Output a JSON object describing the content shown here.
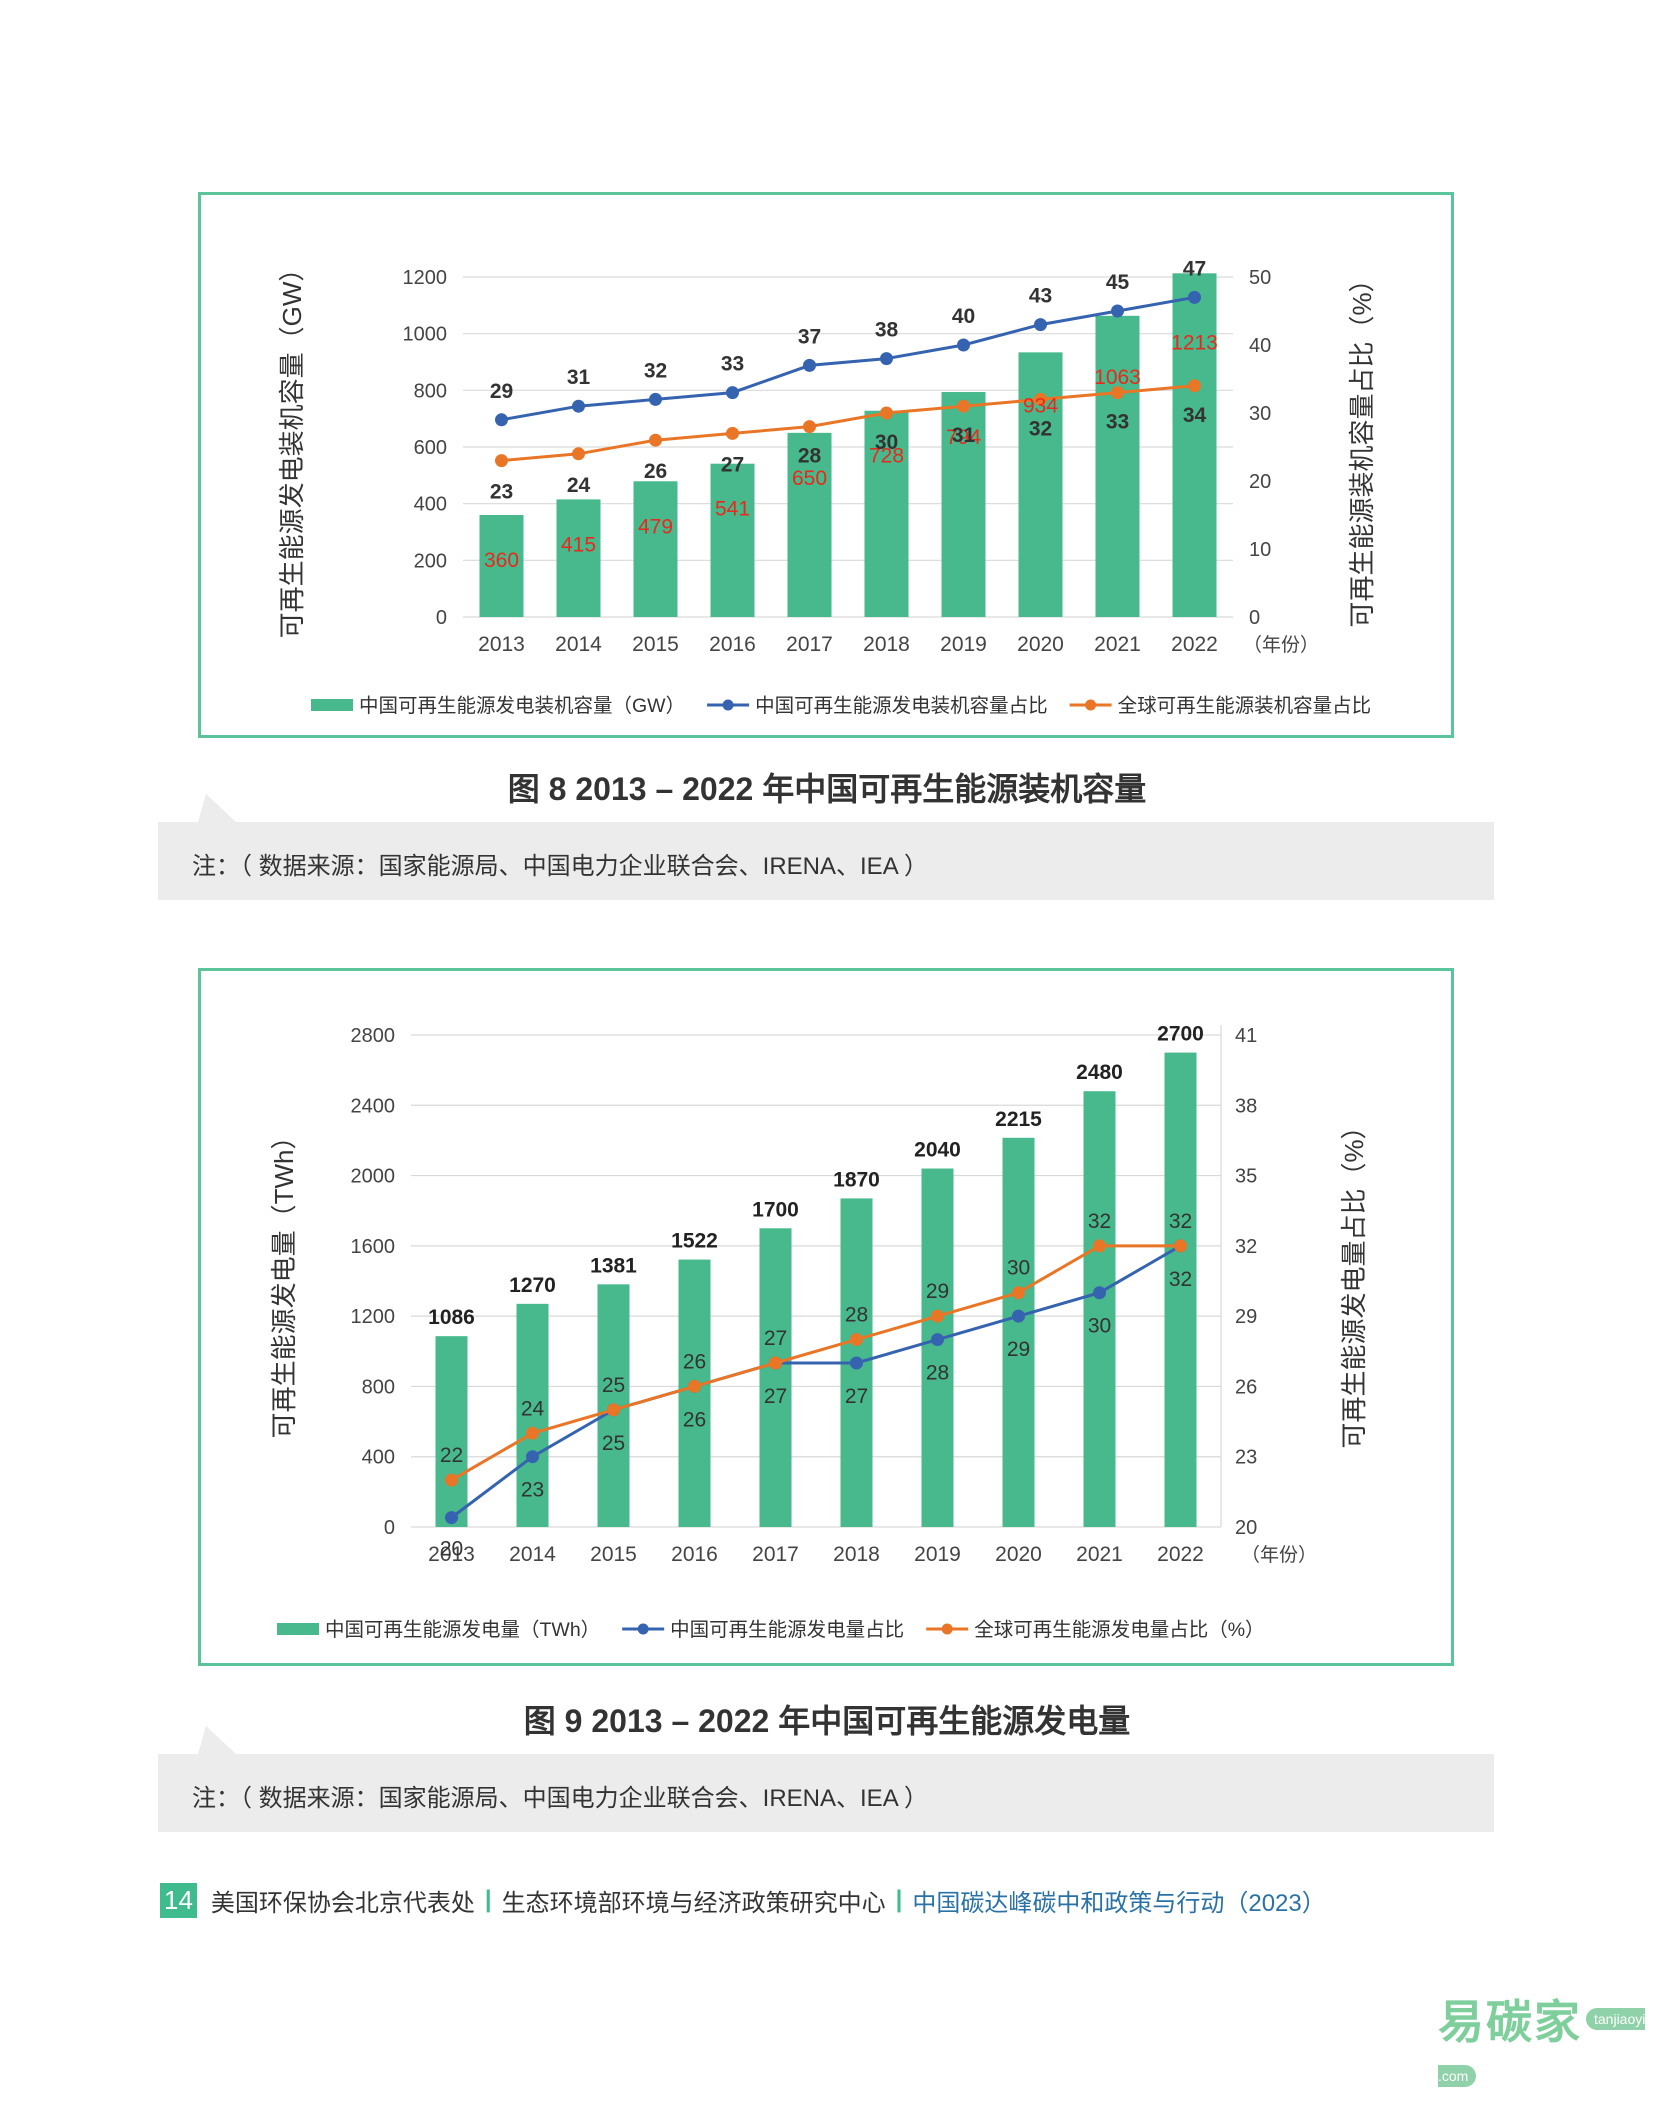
{
  "chart_data": [
    {
      "type": "bar",
      "categories": [
        "2013",
        "2014",
        "2015",
        "2016",
        "2017",
        "2018",
        "2019",
        "2020",
        "2021",
        "2022"
      ],
      "x_unit_label": "（年份）",
      "ylabel": "可再生能源发电装机容量（GW）",
      "y2label": "可再生能源装机容量占比（%）",
      "ylim": [
        0,
        1200
      ],
      "yticks": [
        0,
        200,
        400,
        600,
        800,
        1000,
        1200
      ],
      "y2lim": [
        0,
        50
      ],
      "y2ticks": [
        0,
        10,
        20,
        30,
        40,
        50
      ],
      "grid": true,
      "legend_position": "bottom",
      "series": [
        {
          "name": "中国可再生能源发电装机容量（GW）",
          "kind": "bar",
          "axis": "left",
          "color": "#47b98c",
          "label_color": "#e8291c",
          "values": [
            360,
            415,
            479,
            541,
            650,
            728,
            794,
            934,
            1063,
            1213
          ]
        },
        {
          "name": "中国可再生能源发电装机容量占比",
          "kind": "line",
          "axis": "right",
          "color": "#3563b0",
          "values": [
            29,
            31,
            32,
            33,
            37,
            38,
            40,
            43,
            45,
            47
          ]
        },
        {
          "name": "全球可再生能源装机容量占比",
          "kind": "line",
          "axis": "right",
          "color": "#e97626",
          "values": [
            23,
            24,
            26,
            27,
            28,
            30,
            31,
            32,
            33,
            34
          ]
        }
      ]
    },
    {
      "type": "bar",
      "categories": [
        "2013",
        "2014",
        "2015",
        "2016",
        "2017",
        "2018",
        "2019",
        "2020",
        "2021",
        "2022"
      ],
      "x_unit_label": "（年份）",
      "ylabel": "可再生能源发电量（TWh）",
      "y2label": "可再生能源发电量占比（%）",
      "ylim": [
        0,
        2800
      ],
      "yticks": [
        0,
        400,
        800,
        1200,
        1600,
        2000,
        2400,
        2800
      ],
      "y2lim": [
        20,
        41
      ],
      "y2ticks": [
        20,
        23,
        26,
        29,
        32,
        35,
        38,
        41
      ],
      "grid": true,
      "legend_position": "bottom",
      "series": [
        {
          "name": "中国可再生能源发电量（TWh）",
          "kind": "bar",
          "axis": "left",
          "color": "#47b98c",
          "label_color": "#222222",
          "values": [
            1086,
            1270,
            1381,
            1522,
            1700,
            1870,
            2040,
            2215,
            2480,
            2700
          ]
        },
        {
          "name": "中国可再生能源发电量占比",
          "kind": "line",
          "axis": "right",
          "color": "#3563b0",
          "values": [
            20.4,
            23,
            25,
            26,
            27,
            27,
            28,
            29,
            30,
            32
          ]
        },
        {
          "name": "全球可再生能源发电量占比（%）",
          "kind": "line",
          "axis": "right",
          "color": "#e97626",
          "values": [
            22,
            24,
            25,
            26,
            27,
            28,
            29,
            30,
            32,
            32
          ]
        }
      ]
    }
  ],
  "captions": {
    "fig8": "图 8   2013 – 2022 年中国可再生能源装机容量",
    "fig9": "图 9   2013 – 2022 年中国可再生能源发电量"
  },
  "notes": {
    "fig8": "注：（ 数据来源：国家能源局、中国电力企业联合会、IRENA、IEA ）",
    "fig9": "注：（ 数据来源：国家能源局、中国电力企业联合会、IRENA、IEA ）"
  },
  "footer": {
    "page_number": "14",
    "org1": "美国环保协会北京代表处",
    "org2": "生态环境部环境与经济政策研究中心",
    "title": "中国碳达峰碳中和政策与行动（2023）"
  },
  "watermark": {
    "text": "易碳家",
    "domain": "tanjiaoyi .com"
  }
}
